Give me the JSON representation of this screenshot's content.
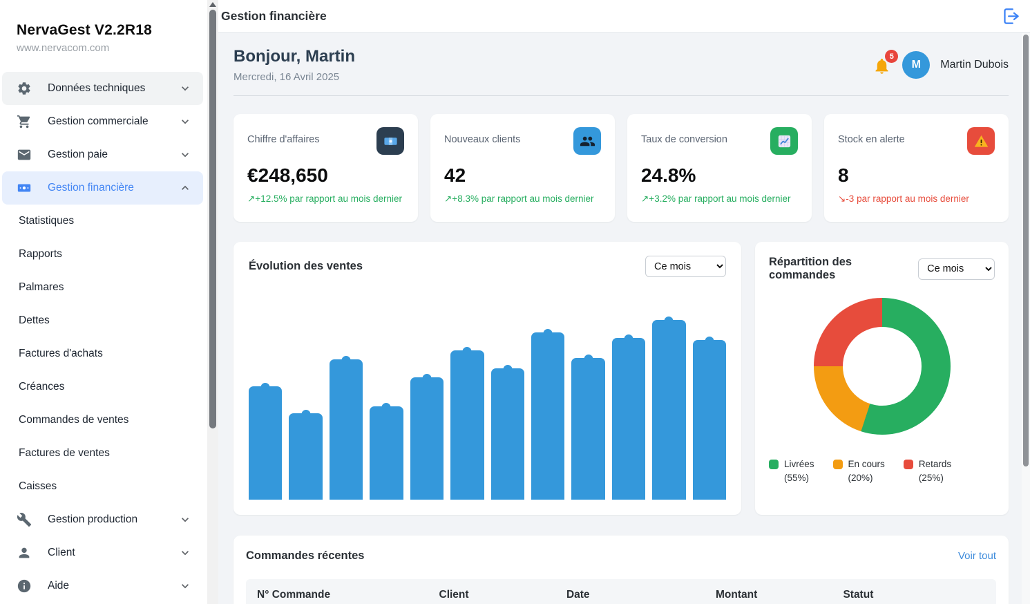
{
  "app": {
    "title": "NervaGest V2.2R18",
    "subtitle": "www.nervacom.com"
  },
  "header": {
    "title": "Gestion financière"
  },
  "sidebar": {
    "items": [
      {
        "label": "Données techniques",
        "icon": "gear",
        "highlighted": true,
        "expanded": false
      },
      {
        "label": "Gestion commerciale",
        "icon": "cart",
        "expanded": false
      },
      {
        "label": "Gestion paie",
        "icon": "mail",
        "expanded": false
      },
      {
        "label": "Gestion financière",
        "icon": "money",
        "active": true,
        "expanded": true,
        "children": [
          "Statistiques",
          "Rapports",
          "Palmares",
          "Dettes",
          "Factures d'achats",
          "Créances",
          "Commandes de ventes",
          "Factures de ventes",
          "Caisses"
        ]
      },
      {
        "label": "Gestion production",
        "icon": "tools",
        "expanded": false
      },
      {
        "label": "Client",
        "icon": "person",
        "expanded": false
      },
      {
        "label": "Aide",
        "icon": "info",
        "expanded": false
      }
    ]
  },
  "welcome": {
    "greeting": "Bonjour, Martin",
    "date": "Mercredi, 16 Avril 2025",
    "notification_count": "5",
    "avatar_initial": "M",
    "user_name": "Martin Dubois"
  },
  "kpis": [
    {
      "label": "Chiffre d'affaires",
      "value": "€248,650",
      "trend": "↗+12.5% par rapport au mois dernier",
      "trend_color": "#27ae60",
      "icon": "banknote",
      "icon_bg": "#2c3e50"
    },
    {
      "label": "Nouveaux clients",
      "value": "42",
      "trend": "↗+8.3% par rapport au mois dernier",
      "trend_color": "#27ae60",
      "icon": "people",
      "icon_bg": "#3498db"
    },
    {
      "label": "Taux de conversion",
      "value": "24.8%",
      "trend": "↗+3.2% par rapport au mois dernier",
      "trend_color": "#27ae60",
      "icon": "chart",
      "icon_bg": "#27ae60"
    },
    {
      "label": "Stock en alerte",
      "value": "8",
      "trend": "↘-3 par rapport au mois dernier",
      "trend_color": "#e74c3c",
      "icon": "warning",
      "icon_bg": "#e74c3c"
    }
  ],
  "sales_chart": {
    "title": "Évolution des ventes",
    "period_selected": "Ce mois"
  },
  "orders_chart": {
    "title": "Répartition des commandes",
    "period_selected": "Ce mois",
    "legend": [
      {
        "label": "Livrées",
        "pct": "(55%)",
        "color": "#27ae60"
      },
      {
        "label": "En cours",
        "pct": "(20%)",
        "color": "#f39c12"
      },
      {
        "label": "Retards",
        "pct": "(25%)",
        "color": "#e74c3c"
      }
    ]
  },
  "orders_table": {
    "title": "Commandes récentes",
    "link": "Voir tout",
    "columns": [
      "N° Commande",
      "Client",
      "Date",
      "Montant",
      "Statut"
    ]
  },
  "chart_data": [
    {
      "type": "bar",
      "title": "Évolution des ventes",
      "n_bars": 12,
      "values": [
        63,
        48,
        78,
        52,
        68,
        83,
        73,
        93,
        79,
        90,
        100,
        89
      ],
      "value_unit": "relative height, % of tallest bar (no axis labels shown)",
      "bar_color": "#3498db",
      "xlabel": "",
      "ylabel": "",
      "grid": false,
      "axis_tick_labels_visible": false
    },
    {
      "type": "pie",
      "title": "Répartition des commandes",
      "donut": true,
      "labels": [
        "Livrées",
        "En cours",
        "Retards"
      ],
      "values": [
        55,
        20,
        25
      ],
      "colors": [
        "#27ae60",
        "#f39c12",
        "#e74c3c"
      ],
      "start_angle_deg": 0,
      "direction": "clockwise",
      "legend_position": "bottom"
    }
  ]
}
